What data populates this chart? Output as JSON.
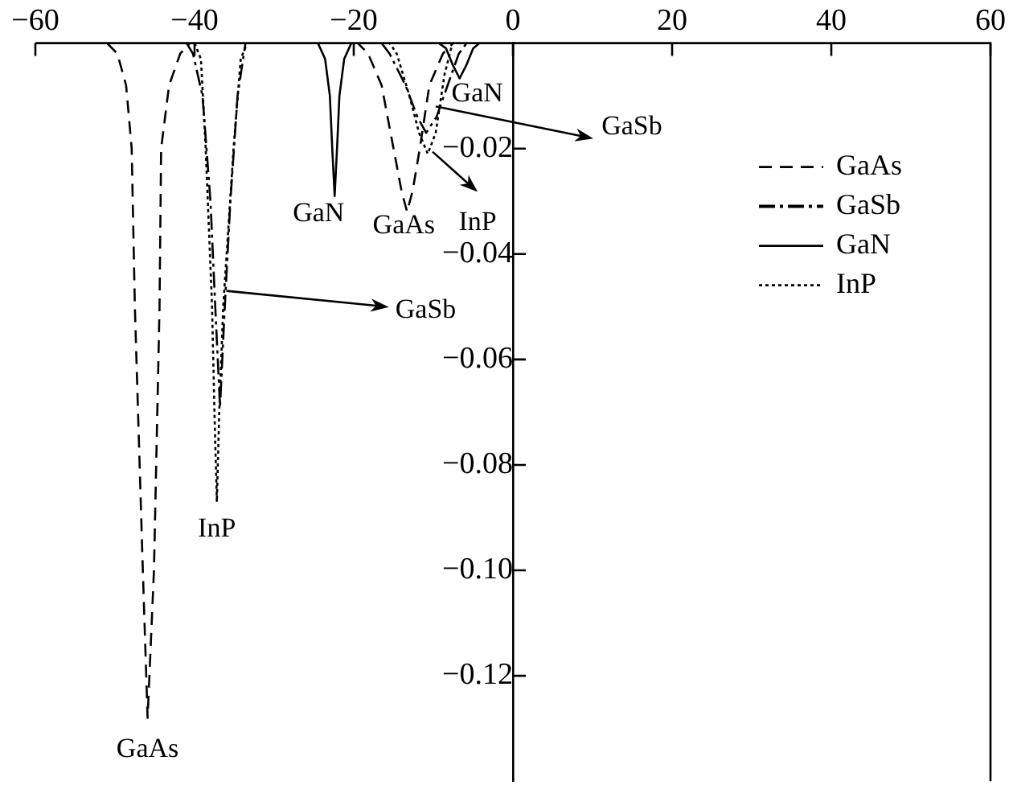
{
  "chart_data": {
    "type": "line",
    "xlim": [
      -60,
      60
    ],
    "ylim": [
      -0.14,
      0
    ],
    "xticks": [
      {
        "value": -60,
        "label": "−60"
      },
      {
        "value": -40,
        "label": "−40"
      },
      {
        "value": -20,
        "label": "−20"
      },
      {
        "value": 0,
        "label": "0"
      },
      {
        "value": 20,
        "label": "20"
      },
      {
        "value": 40,
        "label": "40"
      },
      {
        "value": 60,
        "label": "60"
      }
    ],
    "yticks": [
      {
        "value": -0.02,
        "label": "−0.02"
      },
      {
        "value": -0.04,
        "label": "−0.04"
      },
      {
        "value": -0.06,
        "label": "−0.06"
      },
      {
        "value": -0.08,
        "label": "−0.08"
      },
      {
        "value": -0.1,
        "label": "−0.10"
      },
      {
        "value": -0.12,
        "label": "−0.12"
      }
    ],
    "grid": false,
    "legend": "top right",
    "marker": "none",
    "series": [
      {
        "name": "GaAs",
        "color": "#000000",
        "line_style": "dashed",
        "x": [
          -51,
          -49.7,
          -48.6,
          -47.9,
          -47.5,
          -46.5,
          -45.9,
          -45.1,
          -44.4,
          -44.2,
          -43.2,
          -41.8,
          -40.6,
          -19.5,
          -18.2,
          -16.5,
          -15,
          -14,
          -13.3,
          -12.6,
          -11.7,
          -10.5,
          -8.8,
          -7.5,
          -6.5
        ],
        "values": [
          0,
          -0.002,
          -0.008,
          -0.02,
          -0.05,
          -0.1,
          -0.128,
          -0.1,
          -0.05,
          -0.02,
          -0.008,
          -0.002,
          0,
          0,
          -0.002,
          -0.008,
          -0.02,
          -0.028,
          -0.032,
          -0.028,
          -0.02,
          -0.008,
          -0.002,
          0,
          0
        ]
      },
      {
        "name": "GaSb",
        "color": "#000000",
        "line_style": "dashdot",
        "x": [
          -41,
          -40.2,
          -39,
          -38,
          -37.4,
          -36.8,
          -36.2,
          -35.5,
          -34.6,
          -33.6,
          -16.5,
          -15.5,
          -13.5,
          -12,
          -10.9,
          -9.6,
          -8.2,
          -6.8,
          -5.8
        ],
        "values": [
          0,
          -0.002,
          -0.01,
          -0.03,
          -0.05,
          -0.069,
          -0.05,
          -0.03,
          -0.01,
          0,
          0,
          -0.002,
          -0.008,
          -0.014,
          -0.017,
          -0.014,
          -0.008,
          -0.002,
          0
        ]
      },
      {
        "name": "GaN",
        "color": "#000000",
        "line_style": "solid",
        "x": [
          -24.5,
          -23.6,
          -23,
          -22.7,
          -22.4,
          -22.1,
          -21.8,
          -21.2,
          -20.3,
          -9.3,
          -8.4,
          -7.6,
          -6.7,
          -5.8,
          -5,
          -4.2
        ],
        "values": [
          0,
          -0.003,
          -0.01,
          -0.02,
          -0.029,
          -0.02,
          -0.01,
          -0.003,
          0,
          0,
          -0.001,
          -0.004,
          -0.0067,
          -0.004,
          -0.001,
          0
        ]
      },
      {
        "name": "InP",
        "color": "#000000",
        "line_style": "dotted",
        "x": [
          -40,
          -39.2,
          -38.6,
          -37.8,
          -37.5,
          -37.2,
          -36.9,
          -36.4,
          -35.1,
          -34.2,
          -33.4,
          -15.5,
          -14.6,
          -13,
          -11.8,
          -10.7,
          -9.7,
          -8.6,
          -7.6
        ],
        "values": [
          0,
          -0.003,
          -0.02,
          -0.05,
          -0.07,
          -0.087,
          -0.07,
          -0.05,
          -0.02,
          -0.003,
          0,
          0,
          -0.002,
          -0.01,
          -0.017,
          -0.021,
          -0.017,
          -0.006,
          0
        ]
      }
    ],
    "annotations": [
      {
        "text": "GaAs",
        "x": -45.9,
        "y": -0.128
      },
      {
        "text": "InP",
        "x": -37.2,
        "y": -0.087
      },
      {
        "text": "GaN",
        "x": -22.4,
        "y": -0.029
      },
      {
        "text": "GaAs",
        "x": -13.3,
        "y": -0.032
      },
      {
        "text": "GaN",
        "x": -6.7,
        "y": -0.0067
      },
      {
        "text": "InP",
        "x": -10.1,
        "y": -0.0206
      },
      {
        "text": "GaSb",
        "x": -9.7,
        "y": -0.012
      },
      {
        "text": "GaSb",
        "x": -36,
        "y": -0.047
      }
    ]
  }
}
